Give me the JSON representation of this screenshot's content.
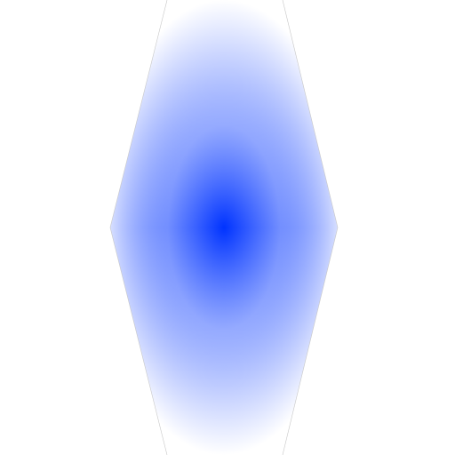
{
  "colors": {
    "background": "#ffffff",
    "center": "#0033ff",
    "edge": "#ffffff",
    "outline": "#c8c8c8"
  }
}
